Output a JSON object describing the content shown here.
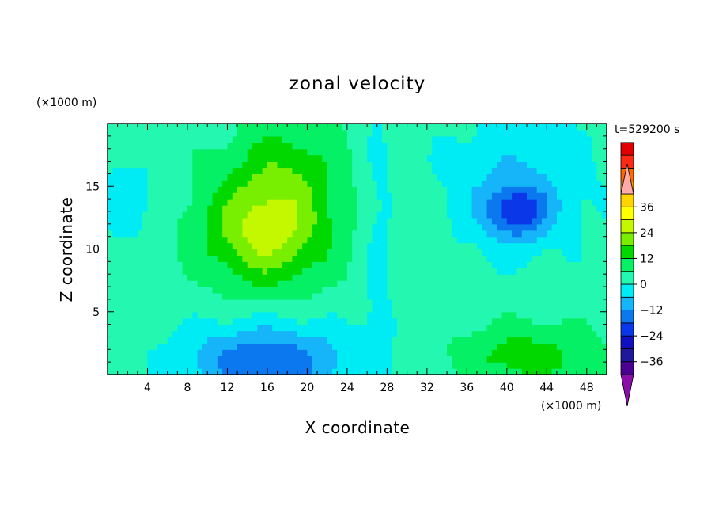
{
  "chart_data": {
    "type": "heatmap",
    "title": "zonal velocity",
    "xlabel": "X coordinate",
    "ylabel": "Z coordinate",
    "x_unit": "(×1000 m)",
    "y_unit": "(×1000 m)",
    "time_label": "t=529200 s",
    "xlim": [
      0,
      50
    ],
    "ylim": [
      0,
      20
    ],
    "x_ticks": [
      4,
      8,
      12,
      16,
      20,
      24,
      28,
      32,
      36,
      40,
      44,
      48
    ],
    "y_ticks": [
      5,
      10,
      15
    ],
    "colorbar": {
      "min": -42,
      "max": 42,
      "step": 6,
      "extend": "both",
      "tick_values": [
        -36,
        -24,
        -12,
        0,
        12,
        24,
        36
      ],
      "tick_labels": [
        "−36",
        "−24",
        "−12",
        "0",
        "12",
        "24",
        "36"
      ],
      "colors": [
        "#4a0090",
        "#20189a",
        "#1010c0",
        "#0a38e8",
        "#0c78f0",
        "#16b4f8",
        "#00ecf4",
        "#24f8b0",
        "#06f066",
        "#00d800",
        "#78ee00",
        "#c4f800",
        "#ffff00",
        "#ffd400",
        "#ff9c00",
        "#ff6a00",
        "#ff2a14",
        "#e00000"
      ],
      "under_color": "#8a0ea8",
      "over_color": "#ffaaa8"
    },
    "field_centers": [
      {
        "x": 16,
        "z": 11.5,
        "value": 23,
        "sigma_x": 4.5,
        "sigma_z": 3.2
      },
      {
        "x": 18,
        "z": 17,
        "value": 9,
        "sigma_x": 4,
        "sigma_z": 3
      },
      {
        "x": 41,
        "z": 13,
        "value": -19,
        "sigma_x": 2.2,
        "sigma_z": 1.5
      },
      {
        "x": 41,
        "z": 15,
        "value": -9,
        "sigma_x": 5.5,
        "sigma_z": 4
      },
      {
        "x": 16,
        "z": 1,
        "value": -20,
        "sigma_x": 6,
        "sigma_z": 2.2
      },
      {
        "x": 42,
        "z": 1.5,
        "value": 12,
        "sigma_x": 5,
        "sigma_z": 1.8
      },
      {
        "x": 27,
        "z": 10,
        "value": -5,
        "sigma_x": 1.2,
        "sigma_z": 10
      },
      {
        "x": 2,
        "z": 14,
        "value": -6,
        "sigma_x": 2,
        "sigma_z": 3
      }
    ]
  }
}
